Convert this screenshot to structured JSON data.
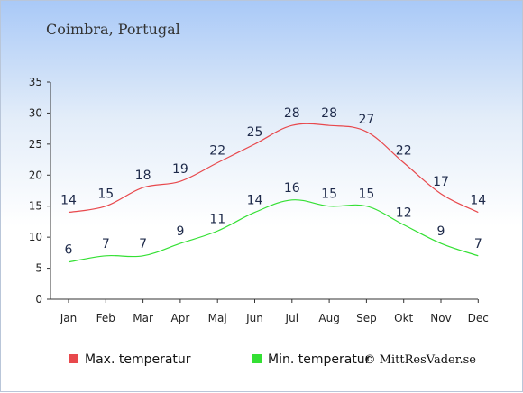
{
  "chart_data": {
    "type": "line",
    "title": "Coimbra, Portugal",
    "categories": [
      "Jan",
      "Feb",
      "Mar",
      "Apr",
      "Maj",
      "Jun",
      "Jul",
      "Aug",
      "Sep",
      "Okt",
      "Nov",
      "Dec"
    ],
    "y_ticks": [
      0,
      5,
      10,
      15,
      20,
      25,
      30,
      35
    ],
    "ylim": [
      0,
      35
    ],
    "grid": false,
    "legend_position": "bottom",
    "series": [
      {
        "name": "Max. temperatur",
        "color": "#e8484c",
        "values": [
          14,
          15,
          18,
          19,
          22,
          25,
          28,
          28,
          27,
          22,
          17,
          14
        ]
      },
      {
        "name": "Min. temperatur",
        "color": "#34e034",
        "values": [
          6,
          7,
          7,
          9,
          11,
          14,
          16,
          15,
          15,
          12,
          9,
          7
        ]
      }
    ],
    "copyright": "© MittResVader.se"
  }
}
